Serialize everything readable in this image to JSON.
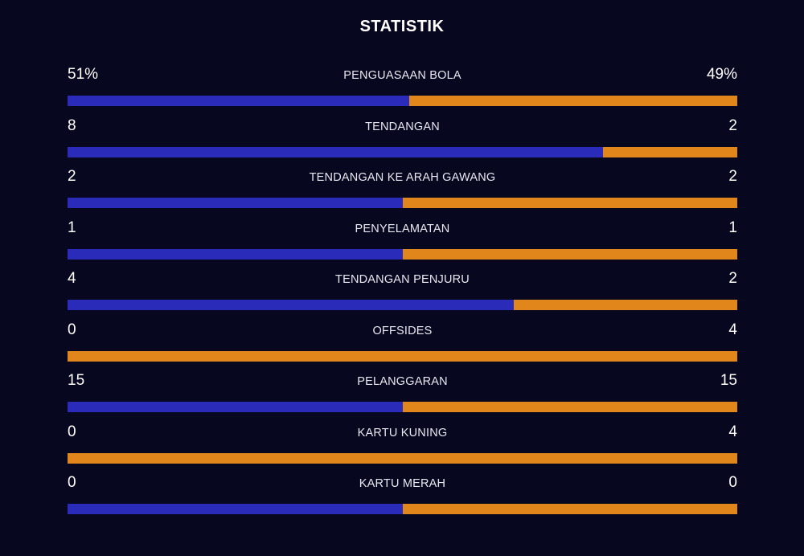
{
  "title": "STATISTIK",
  "colors": {
    "background": "#07071f",
    "home": "#2a2bb8",
    "away": "#e0861a"
  },
  "stats": [
    {
      "label": "PENGUASAAN BOLA",
      "home": "51%",
      "away": "49%",
      "home_value": 51,
      "away_value": 49
    },
    {
      "label": "TENDANGAN",
      "home": "8",
      "away": "2",
      "home_value": 8,
      "away_value": 2
    },
    {
      "label": "TENDANGAN KE ARAH GAWANG",
      "home": "2",
      "away": "2",
      "home_value": 2,
      "away_value": 2
    },
    {
      "label": "PENYELAMATAN",
      "home": "1",
      "away": "1",
      "home_value": 1,
      "away_value": 1
    },
    {
      "label": "TENDANGAN PENJURU",
      "home": "4",
      "away": "2",
      "home_value": 4,
      "away_value": 2
    },
    {
      "label": "OFFSIDES",
      "home": "0",
      "away": "4",
      "home_value": 0,
      "away_value": 4
    },
    {
      "label": "PELANGGARAN",
      "home": "15",
      "away": "15",
      "home_value": 15,
      "away_value": 15
    },
    {
      "label": "KARTU KUNING",
      "home": "0",
      "away": "4",
      "home_value": 0,
      "away_value": 4
    },
    {
      "label": "KARTU MERAH",
      "home": "0",
      "away": "0",
      "home_value": 0,
      "away_value": 0
    }
  ]
}
